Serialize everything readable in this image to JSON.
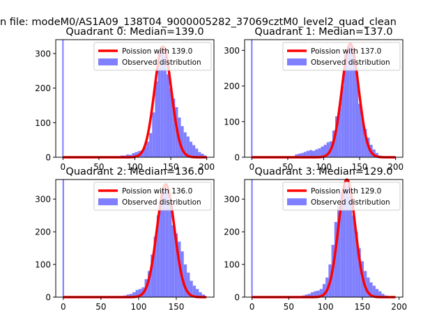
{
  "figure": {
    "suptitle": "n file: modeM0/AS1A09_138T04_9000005282_37069cztM0_level2_quad_clean"
  },
  "colors": {
    "hist": "#8080ff",
    "curve": "#ff0000"
  },
  "chart_data": [
    {
      "type": "bar",
      "title": "Quadrant 0: Median=139.0",
      "xlim": [
        -10,
        210
      ],
      "ylim": [
        0,
        340
      ],
      "xticks": [
        0,
        50,
        100,
        150,
        200
      ],
      "yticks": [
        0,
        100,
        200,
        300
      ],
      "bin_width": 4,
      "zero_bar": {
        "x": 0,
        "value": 340
      },
      "bins": [
        [
          72,
          2
        ],
        [
          76,
          3
        ],
        [
          80,
          5
        ],
        [
          84,
          5
        ],
        [
          88,
          8
        ],
        [
          92,
          7
        ],
        [
          96,
          12
        ],
        [
          100,
          15
        ],
        [
          104,
          18
        ],
        [
          108,
          20
        ],
        [
          112,
          30
        ],
        [
          116,
          45
        ],
        [
          120,
          70
        ],
        [
          124,
          130
        ],
        [
          128,
          220
        ],
        [
          132,
          275
        ],
        [
          136,
          310
        ],
        [
          140,
          295
        ],
        [
          144,
          240
        ],
        [
          148,
          200
        ],
        [
          152,
          170
        ],
        [
          156,
          145
        ],
        [
          160,
          115
        ],
        [
          164,
          90
        ],
        [
          168,
          72
        ],
        [
          172,
          60
        ],
        [
          176,
          45
        ],
        [
          180,
          35
        ],
        [
          184,
          25
        ],
        [
          188,
          15
        ],
        [
          192,
          10
        ],
        [
          196,
          5
        ]
      ],
      "curve": {
        "lambda": 139.0,
        "peak": 320,
        "xmin": 0,
        "xmax": 200
      },
      "legend": {
        "position": "top-right",
        "entries": [
          {
            "label": "Poission with 139.0",
            "kind": "line"
          },
          {
            "label": "Observed distribution",
            "kind": "patch"
          }
        ]
      }
    },
    {
      "type": "bar",
      "title": "Quadrant 1: Median=137.0",
      "xlim": [
        -10,
        210
      ],
      "ylim": [
        0,
        330
      ],
      "xticks": [
        0,
        50,
        100,
        150,
        200
      ],
      "yticks": [
        0,
        100,
        200,
        300
      ],
      "bin_width": 4,
      "zero_bar": {
        "x": 0,
        "value": 330
      },
      "bins": [
        [
          56,
          3
        ],
        [
          60,
          8
        ],
        [
          64,
          10
        ],
        [
          68,
          12
        ],
        [
          72,
          15
        ],
        [
          76,
          18
        ],
        [
          80,
          20
        ],
        [
          84,
          18
        ],
        [
          88,
          22
        ],
        [
          92,
          25
        ],
        [
          96,
          30
        ],
        [
          100,
          35
        ],
        [
          104,
          42
        ],
        [
          108,
          45
        ],
        [
          112,
          75
        ],
        [
          116,
          115
        ],
        [
          120,
          140
        ],
        [
          124,
          200
        ],
        [
          128,
          290
        ],
        [
          132,
          305
        ],
        [
          136,
          310
        ],
        [
          140,
          295
        ],
        [
          144,
          240
        ],
        [
          148,
          150
        ],
        [
          152,
          110
        ],
        [
          156,
          80
        ],
        [
          160,
          55
        ],
        [
          164,
          35
        ],
        [
          168,
          22
        ],
        [
          172,
          12
        ],
        [
          176,
          5
        ]
      ],
      "curve": {
        "lambda": 137.0,
        "peak": 318,
        "xmin": 0,
        "xmax": 200
      },
      "legend": {
        "position": "top-right",
        "entries": [
          {
            "label": "Poission with 137.0",
            "kind": "line"
          },
          {
            "label": "Observed distribution",
            "kind": "patch"
          }
        ]
      }
    },
    {
      "type": "bar",
      "title": "Quadrant 2: Median=136.0",
      "xlim": [
        -10,
        200
      ],
      "ylim": [
        0,
        360
      ],
      "xticks": [
        0,
        50,
        100,
        150
      ],
      "yticks": [
        0,
        100,
        200,
        300
      ],
      "bin_width": 4,
      "zero_bar": {
        "x": 0,
        "value": 360
      },
      "bins": [
        [
          76,
          3
        ],
        [
          80,
          5
        ],
        [
          84,
          8
        ],
        [
          88,
          10
        ],
        [
          92,
          15
        ],
        [
          96,
          22
        ],
        [
          100,
          25
        ],
        [
          104,
          30
        ],
        [
          108,
          55
        ],
        [
          112,
          80
        ],
        [
          116,
          130
        ],
        [
          120,
          185
        ],
        [
          124,
          250
        ],
        [
          128,
          300
        ],
        [
          132,
          330
        ],
        [
          136,
          320
        ],
        [
          140,
          290
        ],
        [
          144,
          220
        ],
        [
          148,
          195
        ],
        [
          152,
          170
        ],
        [
          156,
          140
        ],
        [
          160,
          100
        ],
        [
          164,
          75
        ],
        [
          168,
          50
        ],
        [
          172,
          35
        ],
        [
          176,
          25
        ],
        [
          180,
          15
        ],
        [
          184,
          8
        ]
      ],
      "curve": {
        "lambda": 136.0,
        "peak": 345,
        "xmin": 0,
        "xmax": 190
      },
      "legend": {
        "position": "top-right",
        "entries": [
          {
            "label": "Poission with 136.0",
            "kind": "line"
          },
          {
            "label": "Observed distribution",
            "kind": "patch"
          }
        ]
      }
    },
    {
      "type": "bar",
      "title": "Quadrant 3: Median=129.0",
      "xlim": [
        -10,
        205
      ],
      "ylim": [
        0,
        360
      ],
      "xticks": [
        0,
        50,
        100,
        150,
        200
      ],
      "yticks": [
        0,
        100,
        200,
        300
      ],
      "bin_width": 4,
      "zero_bar": {
        "x": 0,
        "value": 360
      },
      "bins": [
        [
          68,
          5
        ],
        [
          72,
          8
        ],
        [
          76,
          10
        ],
        [
          80,
          15
        ],
        [
          84,
          18
        ],
        [
          88,
          20
        ],
        [
          92,
          25
        ],
        [
          96,
          40
        ],
        [
          100,
          60
        ],
        [
          104,
          100
        ],
        [
          108,
          160
        ],
        [
          112,
          230
        ],
        [
          116,
          280
        ],
        [
          120,
          320
        ],
        [
          124,
          340
        ],
        [
          128,
          345
        ],
        [
          132,
          310
        ],
        [
          136,
          250
        ],
        [
          140,
          200
        ],
        [
          144,
          150
        ],
        [
          148,
          110
        ],
        [
          152,
          80
        ],
        [
          156,
          60
        ],
        [
          160,
          45
        ],
        [
          164,
          35
        ],
        [
          168,
          25
        ],
        [
          172,
          18
        ],
        [
          176,
          10
        ],
        [
          180,
          5
        ]
      ],
      "curve": {
        "lambda": 129.0,
        "peak": 360,
        "xmin": 0,
        "xmax": 195
      },
      "legend": {
        "position": "top-right",
        "entries": [
          {
            "label": "Poission with 129.0",
            "kind": "line"
          },
          {
            "label": "Observed distribution",
            "kind": "patch"
          }
        ]
      }
    }
  ]
}
